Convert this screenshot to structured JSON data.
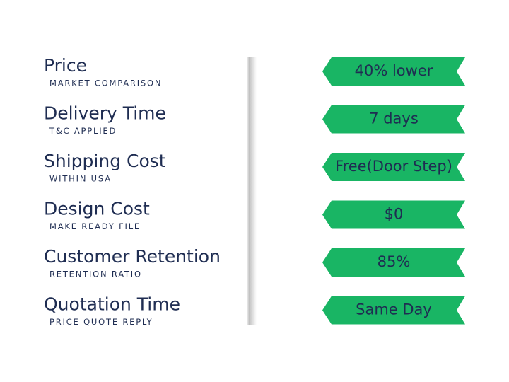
{
  "rows": [
    {
      "label": "Price",
      "sublabel": "MARKET COMPARISON",
      "value": "40% lower"
    },
    {
      "label": "Delivery Time",
      "sublabel": "T&C APPLIED",
      "value": "7 days"
    },
    {
      "label": "Shipping Cost",
      "sublabel": "WITHIN USA",
      "value": "Free(Door Step)"
    },
    {
      "label": "Design Cost",
      "sublabel": "MAKE READY FILE",
      "value": "$0"
    },
    {
      "label": "Customer Retention",
      "sublabel": "RETENTION RATIO",
      "value": "85%"
    },
    {
      "label": "Quotation Time",
      "sublabel": "PRICE QUOTE REPLY",
      "value": "Same Day"
    }
  ]
}
